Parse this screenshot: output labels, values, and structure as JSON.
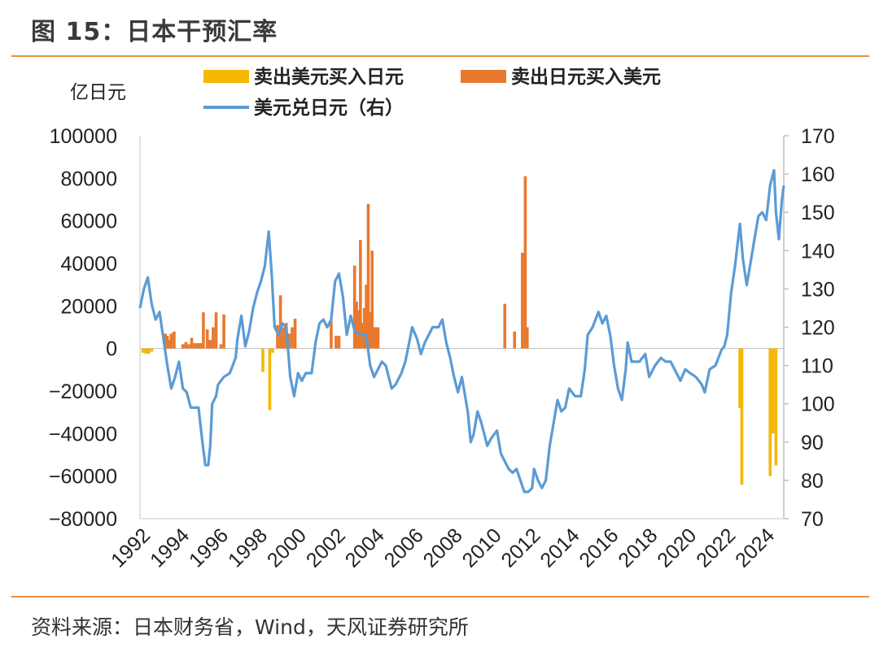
{
  "header": {
    "title": "图 15：日本干预汇率"
  },
  "footer": {
    "source": "资料来源：日本财务省，Wind，天风证券研究所"
  },
  "colors": {
    "sell_usd": "#f5b800",
    "buy_usd": "#e8792f",
    "usdjpy": "#5b9bd5",
    "rule": "#e8913f"
  },
  "chart_data": {
    "type": "bar+line",
    "ylabel": "亿日元",
    "left_axis": {
      "range": [
        -80000,
        100000
      ],
      "ticks": [
        "100000",
        "80000",
        "60000",
        "40000",
        "20000",
        "0",
        "−20000",
        "−40000",
        "−60000",
        "−80000"
      ]
    },
    "right_axis": {
      "range": [
        70,
        170
      ],
      "ticks": [
        "170",
        "160",
        "150",
        "140",
        "130",
        "120",
        "110",
        "100",
        "90",
        "80",
        "70"
      ]
    },
    "x_axis": {
      "range": [
        1992,
        2025
      ],
      "ticks": [
        "1992",
        "1994",
        "1996",
        "1998",
        "2000",
        "2002",
        "2004",
        "2006",
        "2008",
        "2010",
        "2012",
        "2014",
        "2016",
        "2018",
        "2020",
        "2022",
        "2024"
      ]
    },
    "legend": [
      {
        "label": "卖出美元买入日元",
        "key": "sell_usd"
      },
      {
        "label": "卖出日元买入美元",
        "key": "buy_usd"
      },
      {
        "label": "美元兑日元（右）",
        "key": "usdjpy"
      }
    ],
    "series_sell_usd": [
      [
        1992.15,
        -2000
      ],
      [
        1992.3,
        -2500
      ],
      [
        1992.45,
        -2500
      ],
      [
        1992.6,
        -1500
      ],
      [
        1998.3,
        -11000
      ],
      [
        1998.65,
        -29000
      ],
      [
        1998.8,
        -2000
      ],
      [
        2022.75,
        -28000
      ],
      [
        2022.85,
        -64000
      ],
      [
        2024.3,
        -60000
      ],
      [
        2024.45,
        -40000
      ],
      [
        2024.6,
        -55000
      ]
    ],
    "series_buy_usd": [
      [
        1993.3,
        7000
      ],
      [
        1993.4,
        6000
      ],
      [
        1993.5,
        4000
      ],
      [
        1993.6,
        7000
      ],
      [
        1993.75,
        8000
      ],
      [
        1994.2,
        2000
      ],
      [
        1994.35,
        3000
      ],
      [
        1994.5,
        2000
      ],
      [
        1994.65,
        5000
      ],
      [
        1994.8,
        2500
      ],
      [
        1994.95,
        2500
      ],
      [
        1995.1,
        2500
      ],
      [
        1995.25,
        17000
      ],
      [
        1995.45,
        9000
      ],
      [
        1995.6,
        4000
      ],
      [
        1995.75,
        10000
      ],
      [
        1995.9,
        17000
      ],
      [
        1996.15,
        2000
      ],
      [
        1996.3,
        16000
      ],
      [
        1999.05,
        11000
      ],
      [
        1999.2,
        25000
      ],
      [
        1999.35,
        10000
      ],
      [
        1999.5,
        12000
      ],
      [
        1999.65,
        7000
      ],
      [
        1999.8,
        10000
      ],
      [
        1999.95,
        14000
      ],
      [
        2001.8,
        13000
      ],
      [
        2002.05,
        6000
      ],
      [
        2002.2,
        6000
      ],
      [
        2003.0,
        39000
      ],
      [
        2003.1,
        22000
      ],
      [
        2003.2,
        18000
      ],
      [
        2003.3,
        51000
      ],
      [
        2003.4,
        12000
      ],
      [
        2003.5,
        19000
      ],
      [
        2003.6,
        30000
      ],
      [
        2003.7,
        68000
      ],
      [
        2003.8,
        17000
      ],
      [
        2003.9,
        46000
      ],
      [
        2004.0,
        10000
      ],
      [
        2004.1,
        10000
      ],
      [
        2004.2,
        10000
      ],
      [
        2010.7,
        21000
      ],
      [
        2011.2,
        8000
      ],
      [
        2011.6,
        45000
      ],
      [
        2011.75,
        81000
      ],
      [
        2011.85,
        10000
      ]
    ],
    "series_usdjpy": [
      [
        1992.0,
        125
      ],
      [
        1992.2,
        130
      ],
      [
        1992.4,
        133
      ],
      [
        1992.6,
        126
      ],
      [
        1992.8,
        122
      ],
      [
        1993.0,
        124
      ],
      [
        1993.2,
        117
      ],
      [
        1993.4,
        110
      ],
      [
        1993.6,
        104
      ],
      [
        1993.8,
        107
      ],
      [
        1994.0,
        111
      ],
      [
        1994.2,
        104
      ],
      [
        1994.4,
        103
      ],
      [
        1994.6,
        99
      ],
      [
        1994.8,
        99
      ],
      [
        1995.0,
        99
      ],
      [
        1995.2,
        90
      ],
      [
        1995.35,
        84
      ],
      [
        1995.5,
        84
      ],
      [
        1995.6,
        89
      ],
      [
        1995.7,
        100
      ],
      [
        1995.9,
        102
      ],
      [
        1996.0,
        105
      ],
      [
        1996.3,
        107
      ],
      [
        1996.6,
        108
      ],
      [
        1996.9,
        112
      ],
      [
        1997.0,
        117
      ],
      [
        1997.2,
        123
      ],
      [
        1997.4,
        115
      ],
      [
        1997.6,
        119
      ],
      [
        1997.8,
        125
      ],
      [
        1998.0,
        129
      ],
      [
        1998.2,
        132
      ],
      [
        1998.4,
        136
      ],
      [
        1998.6,
        145
      ],
      [
        1998.75,
        134
      ],
      [
        1998.9,
        120
      ],
      [
        1999.1,
        118
      ],
      [
        1999.3,
        121
      ],
      [
        1999.5,
        120
      ],
      [
        1999.7,
        107
      ],
      [
        1999.9,
        102
      ],
      [
        2000.1,
        108
      ],
      [
        2000.3,
        106
      ],
      [
        2000.5,
        108
      ],
      [
        2000.8,
        108
      ],
      [
        2001.0,
        116
      ],
      [
        2001.2,
        121
      ],
      [
        2001.4,
        122
      ],
      [
        2001.6,
        120
      ],
      [
        2001.8,
        122
      ],
      [
        2002.0,
        132
      ],
      [
        2002.2,
        134
      ],
      [
        2002.4,
        128
      ],
      [
        2002.6,
        118
      ],
      [
        2002.8,
        123
      ],
      [
        2003.0,
        119
      ],
      [
        2003.3,
        118
      ],
      [
        2003.6,
        118
      ],
      [
        2003.8,
        110
      ],
      [
        2004.0,
        107
      ],
      [
        2004.2,
        109
      ],
      [
        2004.4,
        111
      ],
      [
        2004.6,
        110
      ],
      [
        2004.9,
        104
      ],
      [
        2005.1,
        105
      ],
      [
        2005.4,
        108
      ],
      [
        2005.6,
        111
      ],
      [
        2005.8,
        116
      ],
      [
        2005.95,
        120
      ],
      [
        2006.2,
        117
      ],
      [
        2006.4,
        113
      ],
      [
        2006.6,
        116
      ],
      [
        2006.8,
        118
      ],
      [
        2007.0,
        120
      ],
      [
        2007.3,
        120
      ],
      [
        2007.5,
        122
      ],
      [
        2007.7,
        116
      ],
      [
        2007.9,
        112
      ],
      [
        2008.1,
        107
      ],
      [
        2008.3,
        103
      ],
      [
        2008.5,
        107
      ],
      [
        2008.8,
        98
      ],
      [
        2008.95,
        90
      ],
      [
        2009.1,
        92
      ],
      [
        2009.3,
        98
      ],
      [
        2009.5,
        95
      ],
      [
        2009.8,
        89
      ],
      [
        2010.0,
        91
      ],
      [
        2010.3,
        93
      ],
      [
        2010.5,
        87
      ],
      [
        2010.7,
        85
      ],
      [
        2010.9,
        83
      ],
      [
        2011.1,
        82
      ],
      [
        2011.3,
        83
      ],
      [
        2011.5,
        80
      ],
      [
        2011.7,
        77
      ],
      [
        2011.9,
        77
      ],
      [
        2012.1,
        78
      ],
      [
        2012.2,
        83
      ],
      [
        2012.4,
        80
      ],
      [
        2012.6,
        78
      ],
      [
        2012.8,
        80
      ],
      [
        2013.0,
        89
      ],
      [
        2013.2,
        95
      ],
      [
        2013.4,
        101
      ],
      [
        2013.6,
        98
      ],
      [
        2013.8,
        99
      ],
      [
        2014.0,
        104
      ],
      [
        2014.3,
        102
      ],
      [
        2014.6,
        102
      ],
      [
        2014.8,
        109
      ],
      [
        2014.95,
        118
      ],
      [
        2015.2,
        120
      ],
      [
        2015.5,
        124
      ],
      [
        2015.7,
        121
      ],
      [
        2015.9,
        123
      ],
      [
        2016.1,
        118
      ],
      [
        2016.3,
        110
      ],
      [
        2016.5,
        104
      ],
      [
        2016.7,
        101
      ],
      [
        2016.9,
        109
      ],
      [
        2017.0,
        116
      ],
      [
        2017.2,
        111
      ],
      [
        2017.4,
        111
      ],
      [
        2017.6,
        111
      ],
      [
        2017.9,
        113
      ],
      [
        2018.1,
        107
      ],
      [
        2018.4,
        110
      ],
      [
        2018.7,
        112
      ],
      [
        2018.95,
        111
      ],
      [
        2019.2,
        111
      ],
      [
        2019.5,
        108
      ],
      [
        2019.7,
        106
      ],
      [
        2019.95,
        109
      ],
      [
        2020.2,
        108
      ],
      [
        2020.5,
        107
      ],
      [
        2020.8,
        105
      ],
      [
        2020.95,
        103
      ],
      [
        2021.2,
        109
      ],
      [
        2021.5,
        110
      ],
      [
        2021.8,
        114
      ],
      [
        2021.95,
        115
      ],
      [
        2022.1,
        118
      ],
      [
        2022.3,
        129
      ],
      [
        2022.5,
        136
      ],
      [
        2022.75,
        147
      ],
      [
        2022.9,
        138
      ],
      [
        2023.1,
        131
      ],
      [
        2023.3,
        137
      ],
      [
        2023.5,
        143
      ],
      [
        2023.7,
        149
      ],
      [
        2023.9,
        150
      ],
      [
        2024.1,
        148
      ],
      [
        2024.3,
        157
      ],
      [
        2024.5,
        161
      ],
      [
        2024.6,
        150
      ],
      [
        2024.75,
        143
      ],
      [
        2024.9,
        153
      ],
      [
        2025.0,
        157
      ]
    ]
  }
}
